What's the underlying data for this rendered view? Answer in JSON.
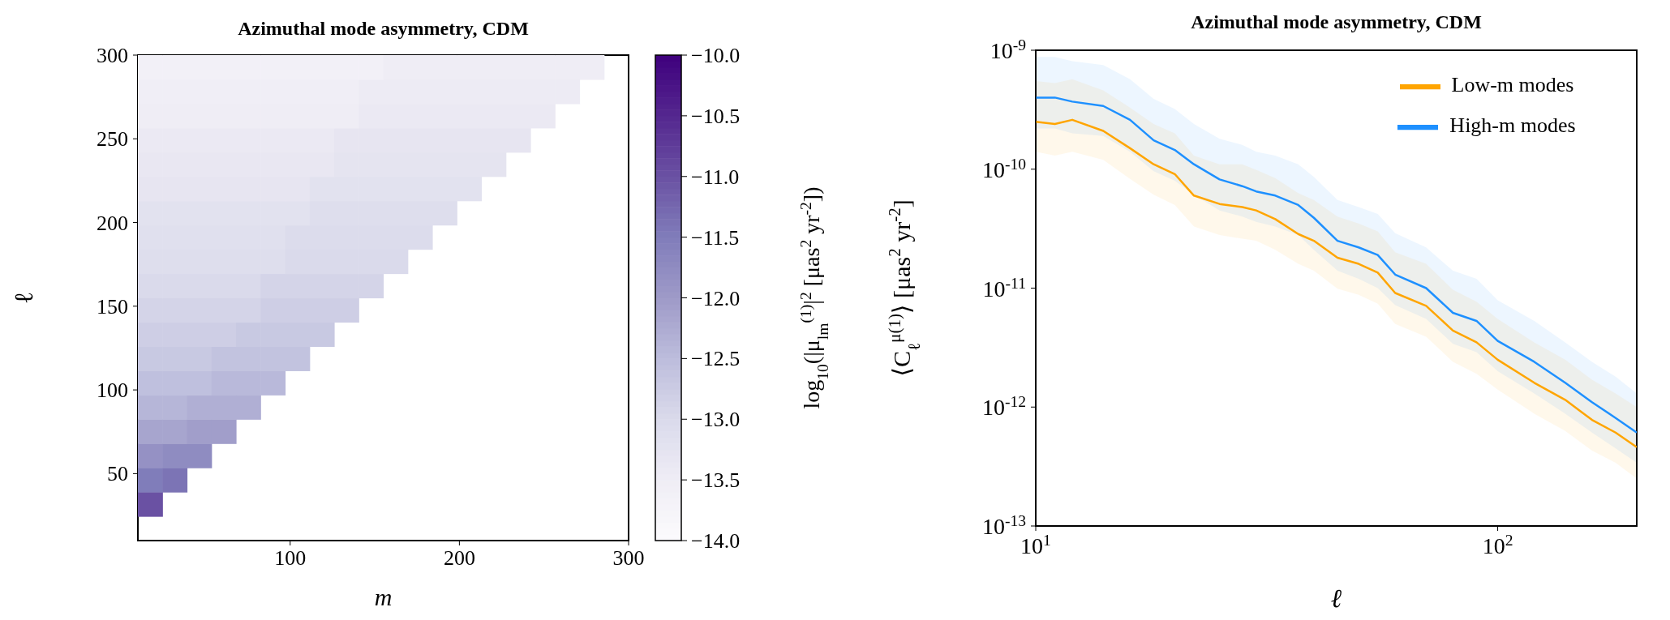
{
  "chart_data": [
    {
      "type": "scatter",
      "title": "Azimuthal mode asymmetry, CDM",
      "xlabel": "m",
      "ylabel": "ℓ",
      "clabel": "log$_{10}$(|μ$_{lm}$$^{(1)}$|$^{2}$ [μas$^{2}$ yr$^{-2}$])",
      "marker": "square",
      "grid": false,
      "xlim": [
        10,
        300
      ],
      "xticks": [
        100,
        200,
        300
      ],
      "ylim": [
        10,
        300
      ],
      "yticks": [
        50,
        100,
        150,
        200,
        250,
        300
      ],
      "clim": [
        -14,
        -10
      ],
      "cticks": [
        {
          "value": -14,
          "label": "−14.0"
        },
        {
          "value": -13.5,
          "label": "−13.5"
        },
        {
          "value": -13,
          "label": "−13.0"
        },
        {
          "value": -12.5,
          "label": "−12.5"
        },
        {
          "value": -12,
          "label": "−12.0"
        },
        {
          "value": -11.5,
          "label": "−11.5"
        },
        {
          "value": -11,
          "label": "−11.0"
        },
        {
          "value": -10.5,
          "label": "−10.5"
        },
        {
          "value": -10,
          "label": "−10.0"
        }
      ],
      "x": [
        17.25,
        17.25,
        31.75,
        17.25,
        31.75,
        46.25,
        17.25,
        31.75,
        46.25,
        60.75,
        17.25,
        31.75,
        46.25,
        60.75,
        75.25,
        17.25,
        31.75,
        46.25,
        60.75,
        75.25,
        89.75,
        17.25,
        31.75,
        46.25,
        60.75,
        75.25,
        89.75,
        104.25,
        17.25,
        31.75,
        46.25,
        60.75,
        75.25,
        89.75,
        104.25,
        118.75,
        17.25,
        31.75,
        46.25,
        60.75,
        75.25,
        89.75,
        104.25,
        118.75,
        133.25,
        17.25,
        31.75,
        46.25,
        60.75,
        75.25,
        89.75,
        104.25,
        118.75,
        133.25,
        147.75,
        17.25,
        31.75,
        46.25,
        60.75,
        75.25,
        89.75,
        104.25,
        118.75,
        133.25,
        147.75,
        162.25,
        17.25,
        31.75,
        46.25,
        60.75,
        75.25,
        89.75,
        104.25,
        118.75,
        133.25,
        147.75,
        162.25,
        176.75,
        17.25,
        31.75,
        46.25,
        60.75,
        75.25,
        89.75,
        104.25,
        118.75,
        133.25,
        147.75,
        162.25,
        176.75,
        191.25,
        17.25,
        31.75,
        46.25,
        60.75,
        75.25,
        89.75,
        104.25,
        118.75,
        133.25,
        147.75,
        162.25,
        176.75,
        191.25,
        205.75,
        17.25,
        31.75,
        46.25,
        60.75,
        75.25,
        89.75,
        104.25,
        118.75,
        133.25,
        147.75,
        162.25,
        176.75,
        191.25,
        205.75,
        220.25,
        17.25,
        31.75,
        46.25,
        60.75,
        75.25,
        89.75,
        104.25,
        118.75,
        133.25,
        147.75,
        162.25,
        176.75,
        191.25,
        205.75,
        220.25,
        234.75,
        17.25,
        31.75,
        46.25,
        60.75,
        75.25,
        89.75,
        104.25,
        118.75,
        133.25,
        147.75,
        162.25,
        176.75,
        191.25,
        205.75,
        220.25,
        234.75,
        249.25,
        17.25,
        31.75,
        46.25,
        60.75,
        75.25,
        89.75,
        104.25,
        118.75,
        133.25,
        147.75,
        162.25,
        176.75,
        191.25,
        205.75,
        220.25,
        234.75,
        249.25,
        263.75,
        17.25,
        31.75,
        46.25,
        60.75,
        75.25,
        89.75,
        104.25,
        118.75,
        133.25,
        147.75,
        162.25,
        176.75,
        191.25,
        205.75,
        220.25,
        234.75,
        249.25,
        263.75,
        278.25
      ],
      "values": [
        31.75,
        46.25,
        46.25,
        60.75,
        60.75,
        60.75,
        75.25,
        75.25,
        75.25,
        75.25,
        89.75,
        89.75,
        89.75,
        89.75,
        89.75,
        104.25,
        104.25,
        104.25,
        104.25,
        104.25,
        104.25,
        118.75,
        118.75,
        118.75,
        118.75,
        118.75,
        118.75,
        118.75,
        133.25,
        133.25,
        133.25,
        133.25,
        133.25,
        133.25,
        133.25,
        133.25,
        147.75,
        147.75,
        147.75,
        147.75,
        147.75,
        147.75,
        147.75,
        147.75,
        147.75,
        162.25,
        162.25,
        162.25,
        162.25,
        162.25,
        162.25,
        162.25,
        162.25,
        162.25,
        162.25,
        176.75,
        176.75,
        176.75,
        176.75,
        176.75,
        176.75,
        176.75,
        176.75,
        176.75,
        176.75,
        176.75,
        191.25,
        191.25,
        191.25,
        191.25,
        191.25,
        191.25,
        191.25,
        191.25,
        191.25,
        191.25,
        191.25,
        191.25,
        205.75,
        205.75,
        205.75,
        205.75,
        205.75,
        205.75,
        205.75,
        205.75,
        205.75,
        205.75,
        205.75,
        205.75,
        205.75,
        220.25,
        220.25,
        220.25,
        220.25,
        220.25,
        220.25,
        220.25,
        220.25,
        220.25,
        220.25,
        220.25,
        220.25,
        220.25,
        220.25,
        234.75,
        234.75,
        234.75,
        234.75,
        234.75,
        234.75,
        234.75,
        234.75,
        234.75,
        234.75,
        234.75,
        234.75,
        234.75,
        234.75,
        234.75,
        249.25,
        249.25,
        249.25,
        249.25,
        249.25,
        249.25,
        249.25,
        249.25,
        249.25,
        249.25,
        249.25,
        249.25,
        249.25,
        249.25,
        249.25,
        249.25,
        263.75,
        263.75,
        263.75,
        263.75,
        263.75,
        263.75,
        263.75,
        263.75,
        263.75,
        263.75,
        263.75,
        263.75,
        263.75,
        263.75,
        263.75,
        263.75,
        263.75,
        278.25,
        278.25,
        278.25,
        278.25,
        278.25,
        278.25,
        278.25,
        278.25,
        278.25,
        278.25,
        278.25,
        278.25,
        278.25,
        278.25,
        278.25,
        278.25,
        278.25,
        278.25,
        292.75,
        292.75,
        292.75,
        292.75,
        292.75,
        292.75,
        292.75,
        292.75,
        292.75,
        292.75,
        292.75,
        292.75,
        292.75,
        292.75,
        292.75,
        292.75,
        292.75,
        292.75,
        292.75
      ],
      "cvalues": [
        -11.0,
        -11.5,
        -11.4,
        -11.85,
        -11.75,
        -11.75,
        -12.15,
        -12.15,
        -12.05,
        -12.05,
        -12.4,
        -12.4,
        -12.3,
        -12.3,
        -12.3,
        -12.55,
        -12.55,
        -12.55,
        -12.45,
        -12.45,
        -12.45,
        -12.7,
        -12.7,
        -12.7,
        -12.6,
        -12.6,
        -12.6,
        -12.6,
        -12.8,
        -12.8,
        -12.8,
        -12.8,
        -12.7,
        -12.7,
        -12.7,
        -12.7,
        -12.9,
        -12.9,
        -12.9,
        -12.9,
        -12.9,
        -12.8,
        -12.8,
        -12.8,
        -12.8,
        -13.0,
        -13.0,
        -13.0,
        -13.0,
        -13.0,
        -12.9,
        -12.9,
        -12.9,
        -12.9,
        -12.9,
        -13.1,
        -13.1,
        -13.1,
        -13.1,
        -13.1,
        -13.1,
        -13.0,
        -13.0,
        -13.0,
        -13.0,
        -13.0,
        -13.15,
        -13.15,
        -13.15,
        -13.15,
        -13.15,
        -13.15,
        -13.05,
        -13.05,
        -13.05,
        -13.05,
        -13.05,
        -13.05,
        -13.2,
        -13.2,
        -13.2,
        -13.2,
        -13.2,
        -13.2,
        -13.2,
        -13.1,
        -13.1,
        -13.1,
        -13.1,
        -13.1,
        -13.1,
        -13.3,
        -13.3,
        -13.3,
        -13.3,
        -13.3,
        -13.3,
        -13.3,
        -13.2,
        -13.2,
        -13.2,
        -13.2,
        -13.2,
        -13.2,
        -13.2,
        -13.35,
        -13.35,
        -13.35,
        -13.35,
        -13.35,
        -13.35,
        -13.35,
        -13.35,
        -13.25,
        -13.25,
        -13.25,
        -13.25,
        -13.25,
        -13.25,
        -13.25,
        -13.4,
        -13.4,
        -13.4,
        -13.4,
        -13.4,
        -13.4,
        -13.4,
        -13.4,
        -13.3,
        -13.3,
        -13.3,
        -13.3,
        -13.3,
        -13.3,
        -13.3,
        -13.3,
        -13.5,
        -13.5,
        -13.5,
        -13.5,
        -13.5,
        -13.5,
        -13.5,
        -13.5,
        -13.5,
        -13.4,
        -13.4,
        -13.4,
        -13.4,
        -13.4,
        -13.4,
        -13.4,
        -13.4,
        -13.55,
        -13.55,
        -13.55,
        -13.55,
        -13.55,
        -13.55,
        -13.55,
        -13.55,
        -13.55,
        -13.45,
        -13.45,
        -13.45,
        -13.45,
        -13.45,
        -13.45,
        -13.45,
        -13.45,
        -13.45,
        -13.6,
        -13.6,
        -13.6,
        -13.6,
        -13.6,
        -13.6,
        -13.6,
        -13.6,
        -13.6,
        -13.6,
        -13.5,
        -13.5,
        -13.5,
        -13.5,
        -13.5,
        -13.5,
        -13.5,
        -13.5,
        -13.5
      ]
    },
    {
      "type": "line",
      "title": "Azimuthal mode asymmetry, CDM",
      "xlabel": "ℓ",
      "ylabel": "⟨C$_{ℓ}$$^{μ(1)}$⟩ [μas$^{2}$ yr$^{-2}$]",
      "log": "xy",
      "grid": false,
      "legend": "top right",
      "xlim": [
        10,
        200
      ],
      "xticks": [
        {
          "value": 10,
          "label": "10$^{1}$"
        },
        {
          "value": 100,
          "label": "10$^{2}$"
        }
      ],
      "ylim": [
        1e-13,
        1e-09
      ],
      "yticks": [
        {
          "value": 1e-13,
          "label": "10$^{-13}$"
        },
        {
          "value": 1e-12,
          "label": "10$^{-12}$"
        },
        {
          "value": 1e-11,
          "label": "10$^{-11}$"
        },
        {
          "value": 1e-10,
          "label": "10$^{-10}$"
        },
        {
          "value": 1e-09,
          "label": "10$^{-9}$"
        }
      ],
      "x": [
        10,
        11,
        12,
        14,
        16,
        18,
        20,
        22,
        25,
        28,
        30,
        33,
        37,
        40,
        45,
        50,
        55,
        60,
        70,
        80,
        90,
        100,
        120,
        140,
        160,
        180,
        200
      ],
      "series": [
        {
          "name": "Low-m modes",
          "color": "#ffa500",
          "values": [
            2.5e-10,
            2.4e-10,
            2.6e-10,
            2.1e-10,
            1.5e-10,
            1.1e-10,
            9.1e-11,
            6e-11,
            5.1e-11,
            4.8e-11,
            4.5e-11,
            3.8e-11,
            2.85e-11,
            2.5e-11,
            1.8e-11,
            1.6e-11,
            1.35e-11,
            9.1e-12,
            7.1e-12,
            4.4e-12,
            3.5e-12,
            2.5e-12,
            1.6e-12,
            1.15e-12,
            7.8e-13,
            6.1e-13,
            4.6e-13
          ],
          "lower": [
            1.4e-10,
            1.3e-10,
            1.4e-10,
            1.2e-10,
            8.3e-11,
            6.1e-11,
            5e-11,
            3.3e-11,
            2.8e-11,
            2.6e-11,
            2.5e-11,
            2.1e-11,
            1.6e-11,
            1.4e-11,
            9.9e-12,
            8.8e-12,
            7.4e-12,
            5e-12,
            3.9e-12,
            2.4e-12,
            1.9e-12,
            1.4e-12,
            8.8e-13,
            6.3e-13,
            4.3e-13,
            3.4e-13,
            2.5e-13
          ],
          "upper": [
            5.5e-10,
            5.3e-10,
            5.7e-10,
            4.6e-10,
            3.3e-10,
            2.4e-10,
            2e-10,
            1.3e-10,
            1.1e-10,
            1.1e-10,
            9.9e-11,
            8.4e-11,
            6.3e-11,
            5.5e-11,
            4e-11,
            3.5e-11,
            3e-11,
            2e-11,
            1.6e-11,
            9.7e-12,
            7.7e-12,
            5.5e-12,
            3.5e-12,
            2.5e-12,
            1.7e-12,
            1.3e-12,
            1e-12
          ]
        },
        {
          "name": "High-m modes",
          "color": "#1e90ff",
          "values": [
            4e-10,
            4e-10,
            3.7e-10,
            3.4e-10,
            2.6e-10,
            1.75e-10,
            1.45e-10,
            1.1e-10,
            8.2e-11,
            7.2e-11,
            6.5e-11,
            6e-11,
            5e-11,
            3.9e-11,
            2.5e-11,
            2.2e-11,
            1.9e-11,
            1.3e-11,
            1e-11,
            6.2e-12,
            5.3e-12,
            3.6e-12,
            2.4e-12,
            1.6e-12,
            1.1e-12,
            8.1e-13,
            6.1e-13
          ],
          "lower": [
            2.2e-10,
            2.2e-10,
            2e-10,
            1.9e-10,
            1.4e-10,
            9.6e-11,
            8e-11,
            6.1e-11,
            4.5e-11,
            4e-11,
            3.6e-11,
            3.3e-11,
            2.8e-11,
            2.1e-11,
            1.4e-11,
            1.2e-11,
            1e-11,
            7.2e-12,
            5.5e-12,
            3.4e-12,
            2.9e-12,
            2e-12,
            1.3e-12,
            8.8e-13,
            6.1e-13,
            4.5e-13,
            3.4e-13
          ],
          "upper": [
            8.8e-10,
            8.8e-10,
            8.1e-10,
            7.5e-10,
            5.7e-10,
            3.9e-10,
            3.2e-10,
            2.4e-10,
            1.8e-10,
            1.6e-10,
            1.4e-10,
            1.3e-10,
            1.1e-10,
            8.6e-11,
            5.5e-11,
            4.8e-11,
            4.2e-11,
            2.9e-11,
            2.2e-11,
            1.4e-11,
            1.2e-11,
            7.9e-12,
            5.3e-12,
            3.5e-12,
            2.4e-12,
            1.8e-12,
            1.3e-12
          ]
        }
      ]
    }
  ]
}
